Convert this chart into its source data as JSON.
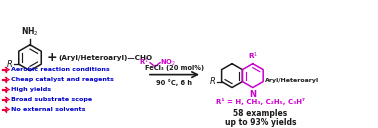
{
  "bg_color": "#ffffff",
  "arrow_color": "#e8003d",
  "bullet_color": "#e8003d",
  "text_blue": "#0000cd",
  "text_purple": "#cc00cc",
  "text_black": "#1a1a1a",
  "bullet_points": [
    "Aerobic reaction conditions",
    "Cheap catalyst and reagents",
    "High yields",
    "Broad substrate scope",
    "No external solvents"
  ],
  "right_line1": "58 examples",
  "right_line2": "up to 93% yields",
  "catalyst_label": "FeCl₃ (20 mol%)",
  "conditions_label": "90 °C, 6 h",
  "r1_label": "R¹ = H, CH₃, C₂H₅, C₃H⁷",
  "fig_width": 3.78,
  "fig_height": 1.28,
  "dpi": 100
}
